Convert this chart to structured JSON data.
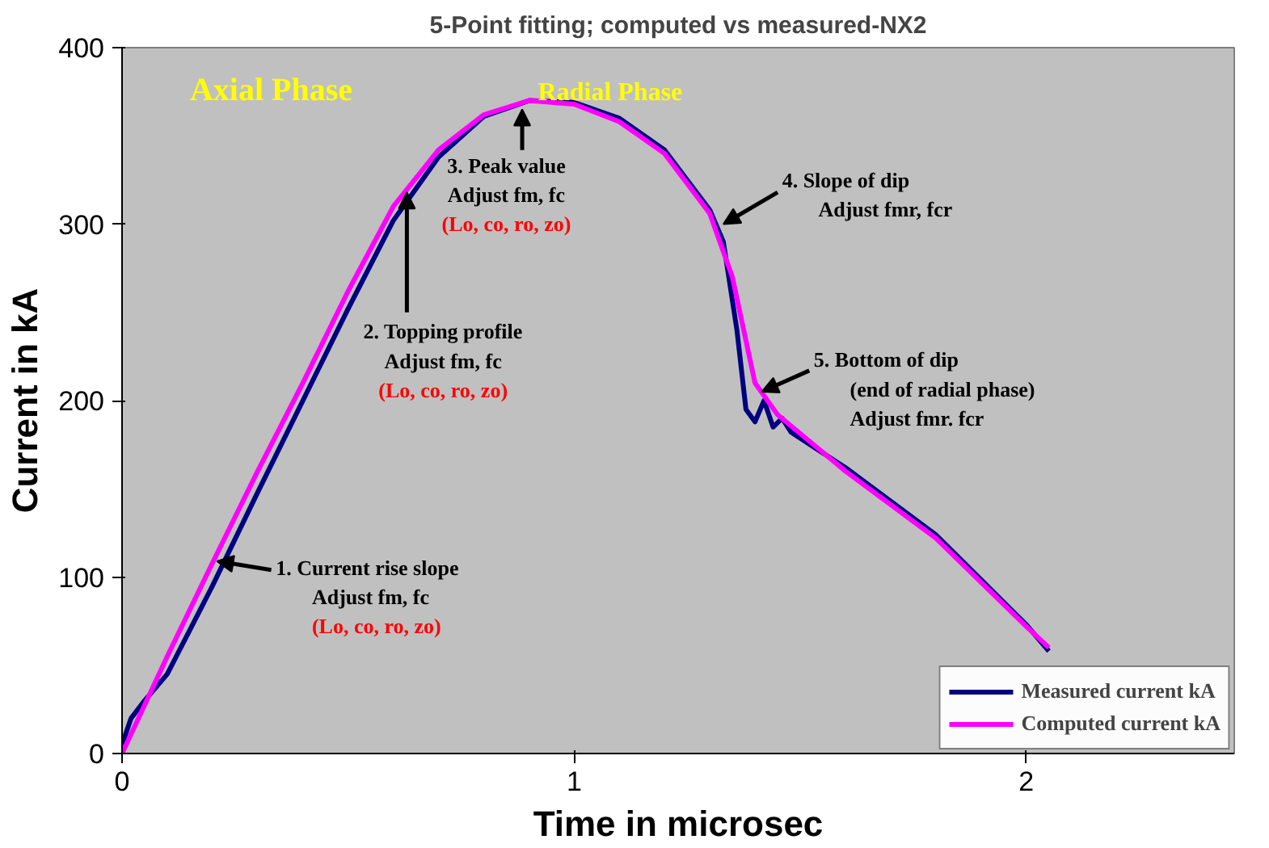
{
  "chart_data": {
    "type": "line",
    "title": "5-Point fitting; computed vs measured-NX2",
    "xlabel": "Time in microsec",
    "ylabel": "Current in kA",
    "xlim": [
      0,
      2.46
    ],
    "ylim": [
      0,
      400
    ],
    "xticks": [
      0,
      1,
      2
    ],
    "yticks": [
      0,
      100,
      200,
      300,
      400
    ],
    "grid": false,
    "legend": "bottom right",
    "marker": "none",
    "line_style": "solid",
    "series": [
      {
        "name": "Measured current kA",
        "color": "#000080",
        "x": [
          0,
          0.02,
          0.05,
          0.1,
          0.2,
          0.3,
          0.4,
          0.5,
          0.6,
          0.7,
          0.8,
          0.9,
          1.0,
          1.1,
          1.2,
          1.3,
          1.33,
          1.36,
          1.38,
          1.4,
          1.42,
          1.44,
          1.46,
          1.48,
          1.6,
          1.8,
          2.0,
          2.05
        ],
        "values": [
          5,
          20,
          30,
          45,
          95,
          148,
          200,
          252,
          302,
          338,
          361,
          370,
          369,
          360,
          342,
          308,
          290,
          240,
          195,
          188,
          200,
          185,
          190,
          182,
          162,
          124,
          73,
          58
        ]
      },
      {
        "name": "Computed current kA",
        "color": "#ff00ff",
        "x": [
          0,
          0.1,
          0.2,
          0.3,
          0.4,
          0.5,
          0.6,
          0.7,
          0.8,
          0.9,
          1.0,
          1.1,
          1.2,
          1.3,
          1.35,
          1.4,
          1.45,
          1.6,
          1.8,
          2.0,
          2.05
        ],
        "values": [
          0,
          55,
          108,
          160,
          210,
          262,
          310,
          342,
          362,
          370,
          368,
          358,
          340,
          306,
          270,
          210,
          192,
          160,
          122,
          72,
          60
        ]
      }
    ],
    "annotations": [
      "Axial   Phase",
      "Radial Phase",
      {
        "text": "1. Current rise slope\nAdjust fm, fc\n(Lo, co, ro, zo)",
        "x": 0.21,
        "y": 109
      },
      {
        "text": "2. Topping profile\nAdjust fm, fc\n(Lo, co, ro, zo)",
        "x": 0.63,
        "y": 318
      },
      {
        "text": "3. Peak value\nAdjust fm, fc\n(Lo, co, ro, zo)",
        "x": 0.885,
        "y": 365
      },
      {
        "text": "4. Slope of dip\nAdjust fmr, fcr",
        "x": 1.33,
        "y": 300
      },
      {
        "text": "5. Bottom of dip\n(end of radial phase)\nAdjust fmr. fcr",
        "x": 1.415,
        "y": 205
      }
    ]
  }
}
